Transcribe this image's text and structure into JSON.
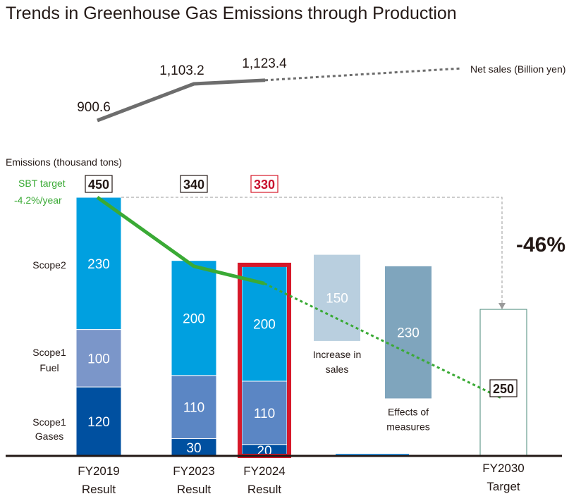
{
  "chart_data": {
    "type": "bar",
    "title": "Trends in Greenhouse Gas Emissions through Production",
    "ylabel": "Emissions (thousand tons)",
    "ylim": [
      0,
      450
    ],
    "categories": [
      {
        "year": "FY2019",
        "kind": "Result"
      },
      {
        "year": "FY2023",
        "kind": "Result"
      },
      {
        "year": "FY2024",
        "kind": "Result"
      },
      {
        "year": "FY2030",
        "kind": "Target"
      }
    ],
    "series": [
      {
        "name": "Scope1 Gases",
        "label_lines": [
          "Scope1",
          "Gases"
        ],
        "color": "#0050a0",
        "values": [
          120,
          30,
          20,
          null
        ]
      },
      {
        "name": "Scope1 Fuel",
        "label_lines": [
          "Scope1",
          "Fuel"
        ],
        "color": "#5b86c4",
        "values": [
          100,
          110,
          110,
          null
        ]
      },
      {
        "name": "Scope2",
        "label_lines": [
          "Scope2"
        ],
        "color": "#00a0e0",
        "values": [
          230,
          200,
          200,
          null
        ]
      }
    ],
    "fy2019_fuel_color": "#7b96c9",
    "totals": [
      450,
      340,
      330,
      250
    ],
    "highlight_color": "#d7192a",
    "waterfall": [
      {
        "value": 150,
        "label_lines": [
          "Increase in",
          "sales"
        ],
        "color": "#b9cfdf",
        "from": 350,
        "to": 200
      },
      {
        "value": 230,
        "label_lines": [
          "Effects of",
          "measures"
        ],
        "color": "#7fa5bd",
        "from": 330,
        "to": 100
      }
    ],
    "target_value": 250,
    "reduction_label": "-46%",
    "sbt_target": {
      "label": "SBT target",
      "rate": "-4.2%/year",
      "values": [
        450,
        330,
        300,
        100
      ],
      "color": "#3aaa35"
    },
    "net_sales": {
      "label": "Net sales (Billion yen)",
      "values": [
        900.6,
        1103.2,
        1123.4
      ],
      "labels": [
        "900.6",
        "1,103.2",
        "1,123.4"
      ],
      "color": "#6d6d6d"
    }
  }
}
